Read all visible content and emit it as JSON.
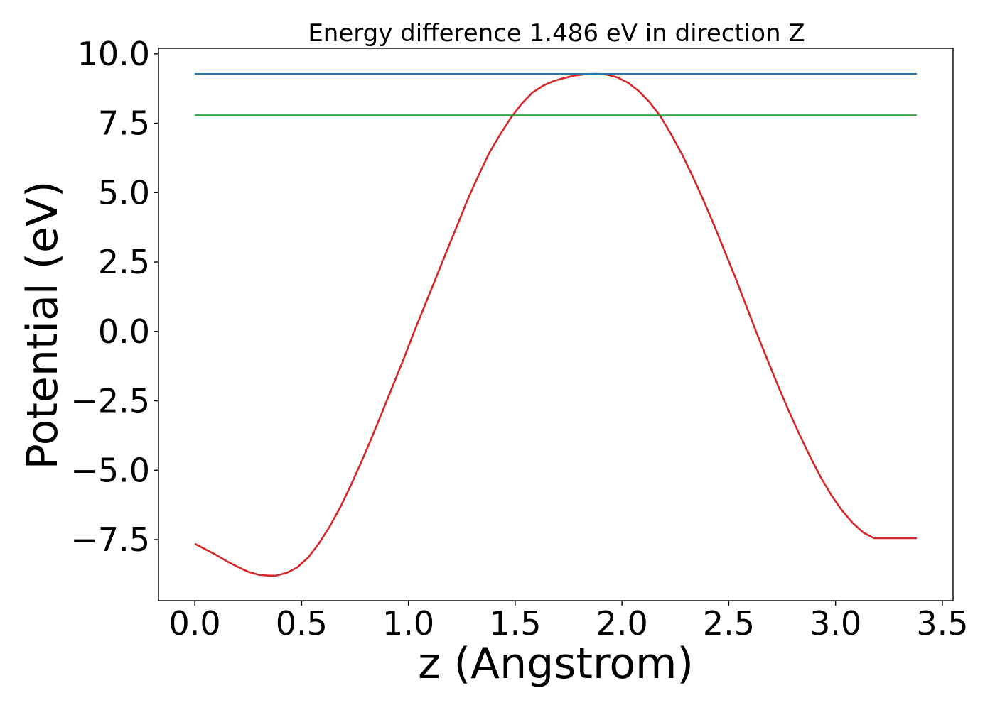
{
  "chart_data": {
    "type": "line",
    "title": "Energy difference 1.486 eV in direction Z",
    "xlabel": "z (Angstrom)",
    "ylabel": "Potential (eV)",
    "xlim": [
      -0.17,
      3.55
    ],
    "ylim": [
      -9.7,
      10.2
    ],
    "x_ticks": [
      0.0,
      0.5,
      1.0,
      1.5,
      2.0,
      2.5,
      3.0,
      3.5
    ],
    "x_tick_labels": [
      "0.0",
      "0.5",
      "1.0",
      "1.5",
      "2.0",
      "2.5",
      "3.0",
      "3.5"
    ],
    "y_ticks": [
      -7.5,
      -5.0,
      -2.5,
      0.0,
      2.5,
      5.0,
      7.5,
      10.0
    ],
    "y_tick_labels": [
      "−7.5",
      "−5.0",
      "−2.5",
      "0.0",
      "2.5",
      "5.0",
      "7.5",
      "10.0"
    ],
    "grid": false,
    "series": [
      {
        "color": "#d62728",
        "x": [
          0.0,
          0.05,
          0.1,
          0.15,
          0.2,
          0.25,
          0.3,
          0.35,
          0.38,
          0.43,
          0.48,
          0.53,
          0.58,
          0.63,
          0.68,
          0.73,
          0.78,
          0.83,
          0.88,
          0.93,
          0.98,
          1.03,
          1.08,
          1.13,
          1.18,
          1.23,
          1.28,
          1.33,
          1.38,
          1.43,
          1.48,
          1.53,
          1.58,
          1.63,
          1.68,
          1.73,
          1.78,
          1.83,
          1.88,
          1.93,
          1.98,
          2.03,
          2.08,
          2.13,
          2.18,
          2.23,
          2.28,
          2.33,
          2.38,
          2.43,
          2.48,
          2.53,
          2.58,
          2.63,
          2.68,
          2.73,
          2.78,
          2.83,
          2.88,
          2.93,
          2.98,
          3.03,
          3.08,
          3.13,
          3.18,
          3.23,
          3.28,
          3.33,
          3.38
        ],
        "y": [
          -7.65,
          -7.85,
          -8.05,
          -8.28,
          -8.48,
          -8.66,
          -8.77,
          -8.8,
          -8.8,
          -8.7,
          -8.5,
          -8.15,
          -7.65,
          -7.05,
          -6.35,
          -5.55,
          -4.7,
          -3.8,
          -2.85,
          -1.9,
          -0.95,
          0.05,
          1.0,
          1.95,
          2.9,
          3.85,
          4.8,
          5.65,
          6.45,
          7.1,
          7.7,
          8.2,
          8.6,
          8.85,
          9.02,
          9.13,
          9.22,
          9.27,
          9.28,
          9.25,
          9.15,
          8.95,
          8.65,
          8.25,
          7.75,
          7.1,
          6.4,
          5.6,
          4.75,
          3.85,
          2.9,
          1.95,
          0.95,
          -0.05,
          -1.0,
          -1.95,
          -2.85,
          -3.7,
          -4.5,
          -5.25,
          -5.9,
          -6.45,
          -6.9,
          -7.25,
          -7.45,
          -7.45,
          -7.45,
          -7.45,
          -7.45
        ]
      },
      {
        "color": "#1f77b4",
        "x": [
          0.0,
          3.38
        ],
        "y": [
          9.28,
          9.28
        ]
      },
      {
        "color": "#2ca02c",
        "x": [
          0.0,
          3.38
        ],
        "y": [
          7.79,
          7.79
        ]
      }
    ]
  }
}
